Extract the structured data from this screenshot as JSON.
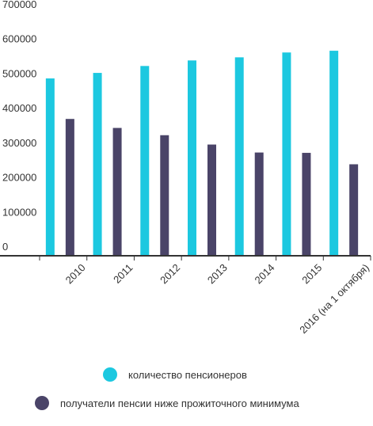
{
  "chart_data": {
    "type": "bar",
    "title": "",
    "xlabel": "",
    "ylabel": "",
    "categories": [
      "2010",
      "2011",
      "2012",
      "2013",
      "2014",
      "2015",
      "2016 (на 1 октября)"
    ],
    "ylim": [
      0,
      700000
    ],
    "yticks": [
      "700000",
      "600000",
      "500000",
      "400000",
      "300000",
      "200000",
      "100000",
      "0"
    ],
    "grid": false,
    "legend_position": "bottom",
    "series": [
      {
        "name": "количество пенсионеров",
        "color": "#1cc8e0",
        "values": [
          510000,
          526000,
          546000,
          562000,
          571000,
          585000,
          590000
        ]
      },
      {
        "name": "получатели пенсии ниже прожиточного минимума",
        "color": "#4a4468",
        "values": [
          393000,
          367000,
          346000,
          319000,
          296000,
          295000,
          262000
        ]
      }
    ]
  },
  "legend": {
    "item1_label": "количество пенсионеров",
    "item2_label": "получатели пенсии ниже прожиточного минимума"
  }
}
